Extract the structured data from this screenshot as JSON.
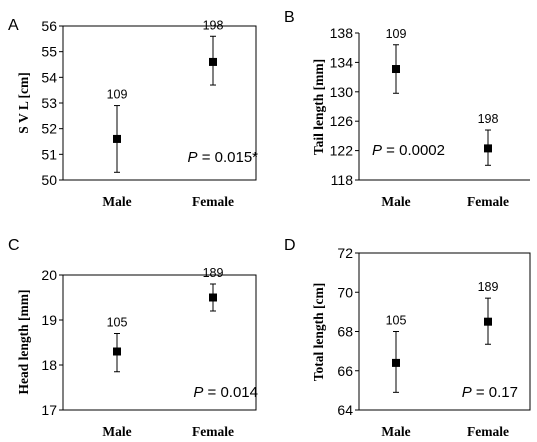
{
  "chart_data": [
    {
      "type": "scatter",
      "panel": "A",
      "ylabel": "S V L [cm]",
      "ylim": [
        50,
        56
      ],
      "yticks": [
        50,
        51,
        52,
        53,
        54,
        55,
        56
      ],
      "categories": [
        "Male",
        "Female"
      ],
      "values": [
        51.6,
        54.6
      ],
      "error_low": [
        50.3,
        53.7
      ],
      "error_high": [
        52.9,
        55.6
      ],
      "n_labels": [
        "109",
        "198"
      ],
      "p_prefix": "P",
      "p_text": " = 0.015*",
      "grid": false
    },
    {
      "type": "scatter",
      "panel": "B",
      "ylabel": "Tail length [mm]",
      "ylim": [
        118,
        138
      ],
      "yticks": [
        118,
        122,
        126,
        130,
        134,
        138
      ],
      "categories": [
        "Male",
        "Female"
      ],
      "values": [
        133.1,
        122.3
      ],
      "error_low": [
        129.8,
        120.0
      ],
      "error_high": [
        136.4,
        124.8
      ],
      "n_labels": [
        "109",
        "198"
      ],
      "p_prefix": "P",
      "p_text": " = 0.0002",
      "grid": false
    },
    {
      "type": "scatter",
      "panel": "C",
      "ylabel": "Head length [mm]",
      "ylim": [
        17,
        20
      ],
      "yticks": [
        17,
        18,
        19,
        20
      ],
      "categories": [
        "Male",
        "Female"
      ],
      "values": [
        18.3,
        19.5
      ],
      "error_low": [
        17.85,
        19.2
      ],
      "error_high": [
        18.7,
        19.8
      ],
      "n_labels": [
        "105",
        "189"
      ],
      "p_prefix": "P",
      "p_text": " = 0.014",
      "grid": false
    },
    {
      "type": "scatter",
      "panel": "D",
      "ylabel": "Total length [cm]",
      "ylim": [
        64,
        72
      ],
      "yticks": [
        64,
        66,
        68,
        70,
        72
      ],
      "categories": [
        "Male",
        "Female"
      ],
      "values": [
        66.4,
        68.5
      ],
      "error_low": [
        64.9,
        67.35
      ],
      "error_high": [
        68.0,
        69.7
      ],
      "n_labels": [
        "105",
        "189"
      ],
      "p_prefix": "P",
      "p_text": " = 0.17",
      "grid": false
    }
  ]
}
